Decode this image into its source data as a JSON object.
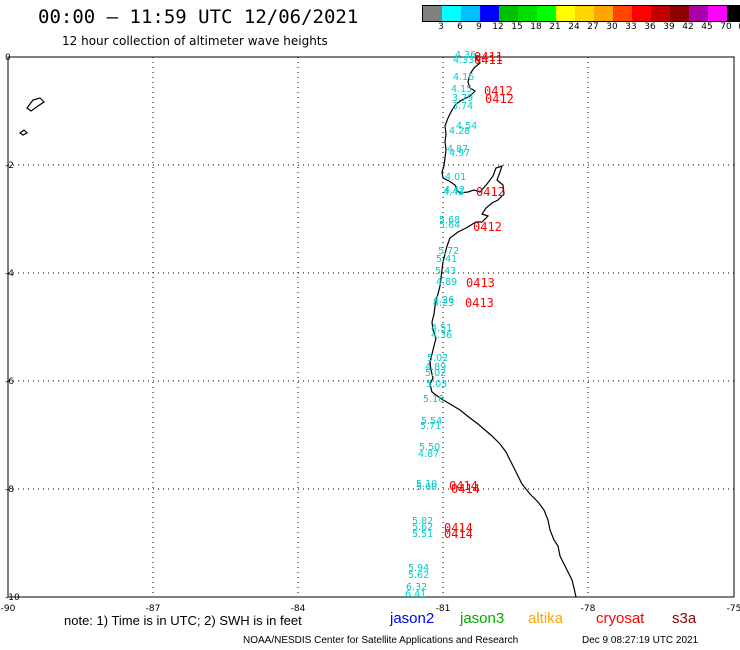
{
  "header": {
    "title": "00:00 – 11:59 UTC 12/06/2021",
    "subtitle": "12 hour collection of altimeter wave heights"
  },
  "legend": {
    "colors": [
      "#808080",
      "#00ffff",
      "#00bfff",
      "#0000ff",
      "#00c000",
      "#00e000",
      "#00ff00",
      "#ffff00",
      "#ffd700",
      "#ffa500",
      "#ff4500",
      "#ff0000",
      "#c00000",
      "#8b0000",
      "#aa00aa",
      "#ff00ff",
      "#000000"
    ],
    "labels": [
      "3",
      "6",
      "9",
      "12",
      "15",
      "18",
      "21",
      "24",
      "27",
      "30",
      "33",
      "36",
      "39",
      "42",
      "45",
      "70",
      "(ft)"
    ]
  },
  "axes": {
    "x_ticks": [
      "-90",
      "-87",
      "-84",
      "-81",
      "-78",
      "-75"
    ],
    "y_ticks": [
      "0",
      "-2",
      "-4",
      "-6",
      "-8",
      "-10"
    ]
  },
  "wave_labels": [
    "4.36",
    "4.33",
    "4.16",
    "4.15",
    "3.79",
    "3.74",
    "4.54",
    "4.28",
    "4.87",
    "4.97",
    "4.01",
    "4.42",
    "4.43",
    "5.68",
    "5.64",
    "5.72",
    "5.41",
    "5.43",
    "4.89",
    "4.26",
    "4.23",
    "4.51",
    "4.36",
    "5.02",
    "4.89",
    "5.02",
    "5.03",
    "5.16",
    "5.54",
    "5.71",
    "5.50",
    "4.87",
    "5.10",
    "5.00",
    "5.82",
    "5.62",
    "5.51",
    "5.94",
    "5.62",
    "6.32",
    "6.41"
  ],
  "time_labels": [
    "0411",
    "0411",
    "0412",
    "0412",
    "0412",
    "0412",
    "0413",
    "0413",
    "0414",
    "0414",
    "0414",
    "0414"
  ],
  "colors": {
    "wave_text": "#00cccc",
    "time_text": "#ff0000",
    "coast": "#000000",
    "grid": "#000000"
  },
  "footer": {
    "note": "note:  1) Time is in UTC;  2) SWH is in feet",
    "satellites": [
      {
        "name": "jason2",
        "color": "#0000ff"
      },
      {
        "name": "jason3",
        "color": "#00aa00"
      },
      {
        "name": "altika",
        "color": "#ffa500"
      },
      {
        "name": "cryosat",
        "color": "#ff0000"
      },
      {
        "name": "s3a",
        "color": "#8b0000"
      }
    ],
    "credit": "NOAA/NESDIS Center for Satellite Applications and Research",
    "timestamp": "Dec  9 08:27:19 UTC 2021"
  }
}
